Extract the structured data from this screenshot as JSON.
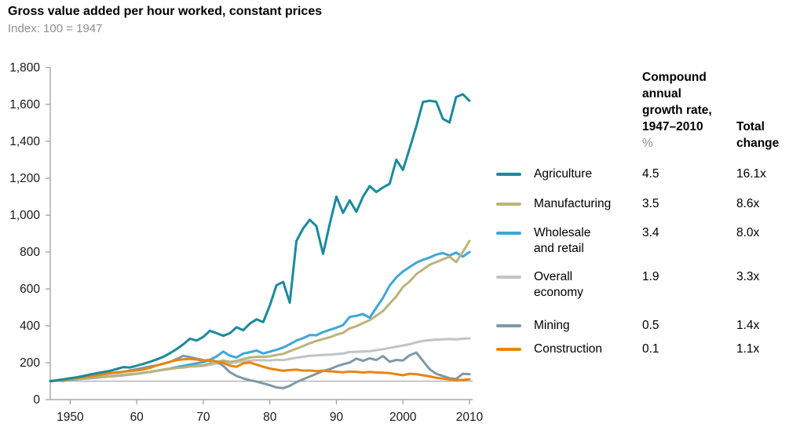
{
  "title": "Gross value added per hour worked, constant prices",
  "subtitle": "Index: 100 = 1947",
  "legend": {
    "columns": {
      "cagr_header_lines": [
        "Compound",
        "annual",
        "growth rate,",
        "1947–2010"
      ],
      "cagr_unit": "%",
      "total_header_lines": [
        "Total",
        "change"
      ]
    },
    "rows": [
      {
        "id": "agriculture",
        "label_lines": [
          "Agriculture"
        ],
        "cagr": "4.5",
        "total": "16.1x"
      },
      {
        "id": "manufacturing",
        "label_lines": [
          "Manufacturing"
        ],
        "cagr": "3.5",
        "total": "8.6x"
      },
      {
        "id": "wholesale",
        "label_lines": [
          "Wholesale",
          "and retail"
        ],
        "cagr": "3.4",
        "total": "8.0x"
      },
      {
        "id": "overall",
        "label_lines": [
          "Overall",
          "economy"
        ],
        "cagr": "1.9",
        "total": "3.3x"
      },
      {
        "id": "mining",
        "label_lines": [
          "Mining"
        ],
        "cagr": "0.5",
        "total": "1.4x"
      },
      {
        "id": "construction",
        "label_lines": [
          "Construction"
        ],
        "cagr": "0.1",
        "total": "1.1x"
      }
    ]
  },
  "chart_data": {
    "type": "line",
    "title": "Gross value added per hour worked, constant prices",
    "subtitle": "Index: 100 = 1947",
    "xlabel": "",
    "ylabel": "Index (100 = 1947)",
    "grid": false,
    "legend_position": "right",
    "baseline_value": 100,
    "x": {
      "start": 1947,
      "end": 2010,
      "step": 1,
      "ticks": [
        1950,
        1960,
        1970,
        1980,
        1990,
        2000,
        2010
      ],
      "tick_labels": [
        "1950",
        "60",
        "70",
        "80",
        "90",
        "2000",
        "2010"
      ]
    },
    "y": {
      "min": 0,
      "max": 1800,
      "tick_step": 200,
      "tick_labels": [
        "0",
        "200",
        "400",
        "600",
        "800",
        "1,000",
        "1,200",
        "1,400",
        "1,600",
        "1,800"
      ]
    },
    "z_order": [
      "overall",
      "mining",
      "wholesale",
      "manufacturing",
      "construction",
      "agriculture"
    ],
    "series": [
      {
        "id": "agriculture",
        "name": "Agriculture",
        "color": "#1b8a9d",
        "cagr_pct": 4.5,
        "total_change": "16.1x",
        "values": [
          100,
          105,
          110,
          116,
          121,
          128,
          136,
          143,
          150,
          156,
          166,
          176,
          174,
          184,
          194,
          205,
          218,
          232,
          252,
          274,
          300,
          330,
          320,
          340,
          373,
          360,
          346,
          360,
          392,
          376,
          412,
          435,
          420,
          510,
          620,
          638,
          525,
          860,
          928,
          975,
          940,
          790,
          952,
          1100,
          1012,
          1080,
          1018,
          1100,
          1158,
          1125,
          1150,
          1170,
          1300,
          1245,
          1360,
          1480,
          1613,
          1620,
          1615,
          1522,
          1502,
          1640,
          1655,
          1620
        ]
      },
      {
        "id": "manufacturing",
        "name": "Manufacturing",
        "color": "#bcb37c",
        "cagr_pct": 3.5,
        "total_change": "8.6x",
        "values": [
          100,
          103,
          106,
          110,
          112,
          115,
          118,
          121,
          124,
          126,
          129,
          131,
          137,
          140,
          145,
          150,
          156,
          162,
          167,
          171,
          174,
          180,
          183,
          186,
          196,
          205,
          212,
          205,
          210,
          220,
          228,
          232,
          232,
          234,
          242,
          248,
          262,
          276,
          290,
          305,
          318,
          328,
          338,
          352,
          362,
          386,
          398,
          415,
          430,
          455,
          480,
          520,
          560,
          610,
          640,
          680,
          705,
          730,
          745,
          760,
          775,
          745,
          800,
          860
        ]
      },
      {
        "id": "wholesale",
        "name": "Wholesale and retail",
        "color": "#3fa6d8",
        "cagr_pct": 3.4,
        "total_change": "8.0x",
        "values": [
          100,
          102,
          105,
          108,
          110,
          113,
          116,
          119,
          123,
          126,
          128,
          132,
          136,
          140,
          145,
          150,
          156,
          162,
          168,
          176,
          183,
          190,
          196,
          203,
          216,
          234,
          260,
          238,
          228,
          250,
          257,
          266,
          250,
          260,
          270,
          282,
          300,
          320,
          333,
          350,
          349,
          366,
          378,
          390,
          404,
          448,
          454,
          464,
          444,
          498,
          552,
          618,
          662,
          694,
          718,
          742,
          758,
          770,
          786,
          794,
          781,
          797,
          775,
          800
        ]
      },
      {
        "id": "overall",
        "name": "Overall economy",
        "color": "#c0c4c6",
        "cagr_pct": 1.9,
        "total_change": "3.3x",
        "values": [
          100,
          103,
          106,
          112,
          115,
          118,
          121,
          123,
          127,
          128,
          131,
          134,
          139,
          141,
          145,
          151,
          156,
          161,
          166,
          171,
          174,
          179,
          180,
          182,
          189,
          195,
          200,
          197,
          202,
          208,
          211,
          213,
          213,
          212,
          216,
          214,
          221,
          227,
          232,
          238,
          239,
          242,
          244,
          247,
          250,
          258,
          259,
          261,
          262,
          268,
          273,
          280,
          287,
          293,
          300,
          310,
          318,
          322,
          325,
          327,
          328,
          326,
          330,
          332
        ]
      },
      {
        "id": "mining",
        "name": "Mining",
        "color": "#7f99a8",
        "cagr_pct": 0.5,
        "total_change": "1.4x",
        "values": [
          100,
          103,
          101,
          110,
          116,
          120,
          126,
          132,
          140,
          144,
          146,
          150,
          158,
          165,
          172,
          179,
          186,
          194,
          204,
          220,
          237,
          230,
          222,
          214,
          209,
          206,
          183,
          148,
          128,
          115,
          105,
          98,
          88,
          78,
          66,
          62,
          75,
          95,
          110,
          125,
          140,
          155,
          165,
          180,
          192,
          201,
          222,
          210,
          224,
          215,
          236,
          205,
          215,
          212,
          240,
          255,
          210,
          165,
          140,
          128,
          116,
          112,
          140,
          138
        ]
      },
      {
        "id": "construction",
        "name": "Construction",
        "color": "#e8860e",
        "cagr_pct": 0.1,
        "total_change": "1.1x",
        "values": [
          100,
          104,
          107,
          112,
          117,
          122,
          127,
          131,
          138,
          143,
          148,
          151,
          155,
          158,
          163,
          172,
          185,
          195,
          205,
          214,
          218,
          221,
          217,
          211,
          216,
          206,
          199,
          184,
          178,
          196,
          201,
          190,
          178,
          168,
          162,
          156,
          160,
          162,
          157,
          158,
          154,
          157,
          153,
          151,
          148,
          152,
          150,
          147,
          150,
          147,
          146,
          144,
          138,
          132,
          140,
          138,
          132,
          126,
          118,
          114,
          109,
          105,
          107,
          110
        ]
      }
    ]
  }
}
